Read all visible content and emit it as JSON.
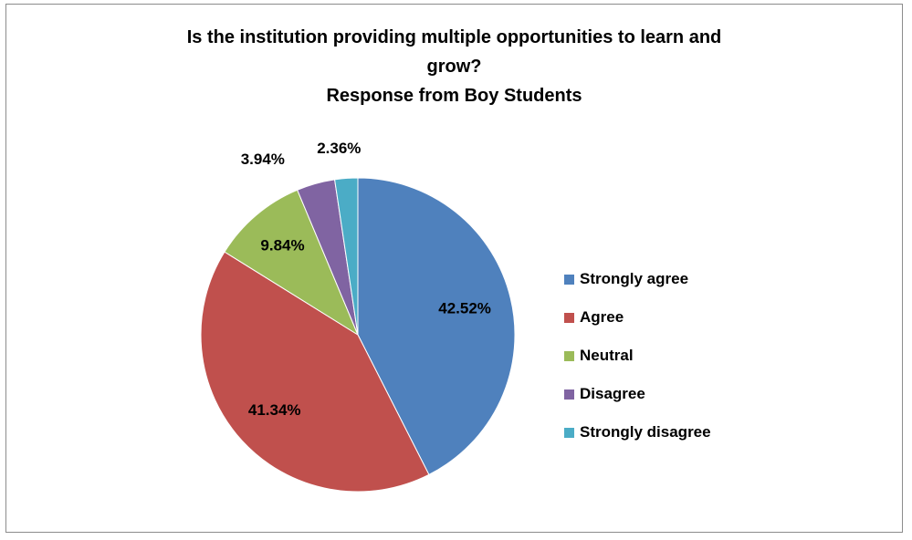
{
  "chart_data": {
    "type": "pie",
    "title_lines": [
      "Is the institution providing multiple opportunities to learn and",
      "grow?",
      "Response from Boy Students"
    ],
    "categories": [
      "Strongly agree",
      "Agree",
      "Neutral",
      "Disagree",
      "Strongly disagree"
    ],
    "values": [
      42.52,
      41.34,
      9.84,
      3.94,
      2.36
    ],
    "labels": [
      "42.52%",
      "41.34%",
      "9.84%",
      "3.94%",
      "2.36%"
    ],
    "colors": [
      "#4f81bd",
      "#c0504d",
      "#9bbb59",
      "#8064a2",
      "#4bacc6"
    ],
    "start": "12 o'clock",
    "direction": "clockwise",
    "legend_position": "right"
  }
}
